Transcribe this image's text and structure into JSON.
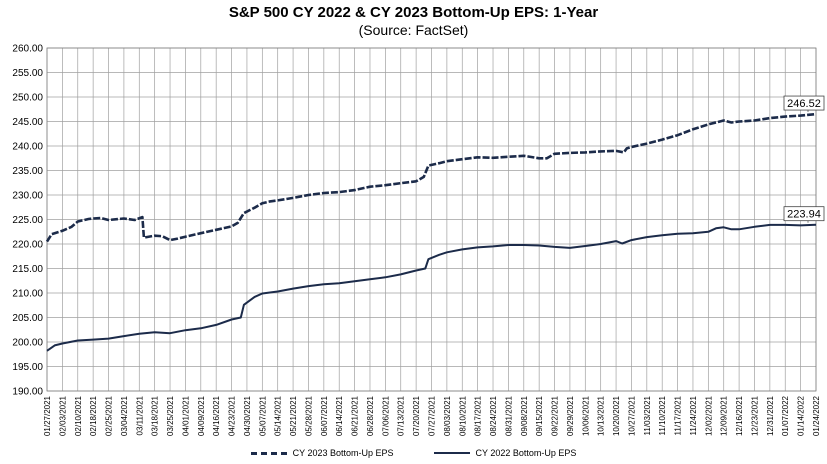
{
  "chart_data": {
    "type": "line",
    "title": "S&P 500 CY 2022 & CY 2023 Bottom-Up  EPS: 1-Year",
    "subtitle": "(Source: FactSet)",
    "ylim": [
      190,
      260
    ],
    "yticks": [
      "190.00",
      "195.00",
      "200.00",
      "205.00",
      "210.00",
      "215.00",
      "220.00",
      "225.00",
      "230.00",
      "235.00",
      "240.00",
      "245.00",
      "250.00",
      "255.00",
      "260.00"
    ],
    "xticks": [
      "01/27/2021",
      "02/03/2021",
      "02/10/2021",
      "02/18/2021",
      "02/25/2021",
      "03/04/2021",
      "03/11/2021",
      "03/18/2021",
      "03/25/2021",
      "04/01/2021",
      "04/09/2021",
      "04/16/2021",
      "04/23/2021",
      "04/30/2021",
      "05/07/2021",
      "05/14/2021",
      "05/21/2021",
      "05/28/2021",
      "06/07/2021",
      "06/14/2021",
      "06/21/2021",
      "06/28/2021",
      "07/06/2021",
      "07/13/2021",
      "07/20/2021",
      "07/27/2021",
      "08/03/2021",
      "08/10/2021",
      "08/17/2021",
      "08/24/2021",
      "08/31/2021",
      "09/08/2021",
      "09/15/2021",
      "09/22/2021",
      "09/29/2021",
      "10/06/2021",
      "10/13/2021",
      "10/20/2021",
      "10/27/2021",
      "11/03/2021",
      "11/10/2021",
      "11/17/2021",
      "11/24/2021",
      "12/02/2021",
      "12/09/2021",
      "12/16/2021",
      "12/23/2021",
      "12/31/2021",
      "01/07/2022",
      "01/14/2022",
      "01/24/2022"
    ],
    "legend_position": "bottom",
    "grid": true,
    "series": [
      {
        "name": "CY 2023 Bottom-Up EPS",
        "style": "dashed",
        "color": "#1c2b4a",
        "end_label": "246.52",
        "points": [
          [
            0,
            220.5
          ],
          [
            0.3,
            222.0
          ],
          [
            1,
            222.7
          ],
          [
            1.6,
            223.5
          ],
          [
            2,
            224.6
          ],
          [
            2.7,
            225.1
          ],
          [
            3,
            225.2
          ],
          [
            3.5,
            225.3
          ],
          [
            4,
            224.9
          ],
          [
            5,
            225.2
          ],
          [
            5.7,
            224.9
          ],
          [
            6.2,
            225.5
          ],
          [
            6.3,
            221.3
          ],
          [
            7,
            221.7
          ],
          [
            7.5,
            221.6
          ],
          [
            8,
            220.8
          ],
          [
            8.5,
            221.1
          ],
          [
            9,
            221.5
          ],
          [
            10,
            222.2
          ],
          [
            11,
            222.9
          ],
          [
            12,
            223.6
          ],
          [
            12.4,
            224.3
          ],
          [
            12.8,
            226.3
          ],
          [
            13.5,
            227.4
          ],
          [
            14,
            228.3
          ],
          [
            14.5,
            228.7
          ],
          [
            15,
            228.9
          ],
          [
            16,
            229.4
          ],
          [
            17,
            230.0
          ],
          [
            18,
            230.4
          ],
          [
            19,
            230.6
          ],
          [
            20,
            231.0
          ],
          [
            21,
            231.7
          ],
          [
            22,
            232.0
          ],
          [
            23,
            232.4
          ],
          [
            24,
            232.8
          ],
          [
            24.5,
            233.7
          ],
          [
            24.8,
            236.0
          ],
          [
            25.5,
            236.5
          ],
          [
            26,
            236.9
          ],
          [
            27,
            237.3
          ],
          [
            28,
            237.7
          ],
          [
            29,
            237.6
          ],
          [
            30,
            237.8
          ],
          [
            31,
            238.0
          ],
          [
            32,
            237.5
          ],
          [
            32.5,
            237.5
          ],
          [
            33,
            238.4
          ],
          [
            34,
            238.6
          ],
          [
            35,
            238.7
          ],
          [
            36,
            238.9
          ],
          [
            37,
            239.0
          ],
          [
            37.5,
            238.7
          ],
          [
            37.7,
            239.5
          ],
          [
            38,
            239.8
          ],
          [
            39,
            240.5
          ],
          [
            40,
            241.3
          ],
          [
            41,
            242.2
          ],
          [
            42,
            243.4
          ],
          [
            43,
            244.4
          ],
          [
            44,
            245.2
          ],
          [
            44.5,
            244.8
          ],
          [
            45,
            245.0
          ],
          [
            46,
            245.2
          ],
          [
            47,
            245.7
          ],
          [
            48,
            246.0
          ],
          [
            49,
            246.2
          ],
          [
            50,
            246.52
          ]
        ]
      },
      {
        "name": "CY 2022 Bottom-Up EPS",
        "style": "solid",
        "color": "#1c2b4a",
        "end_label": "223.94",
        "points": [
          [
            0,
            198.2
          ],
          [
            0.5,
            199.3
          ],
          [
            1,
            199.7
          ],
          [
            2,
            200.3
          ],
          [
            3,
            200.5
          ],
          [
            4,
            200.7
          ],
          [
            5,
            201.2
          ],
          [
            6,
            201.7
          ],
          [
            7,
            202.0
          ],
          [
            8,
            201.8
          ],
          [
            9,
            202.4
          ],
          [
            10,
            202.8
          ],
          [
            11,
            203.5
          ],
          [
            12,
            204.6
          ],
          [
            12.6,
            205.0
          ],
          [
            12.8,
            207.6
          ],
          [
            13.5,
            209.2
          ],
          [
            14,
            209.9
          ],
          [
            15,
            210.3
          ],
          [
            16,
            210.9
          ],
          [
            17,
            211.4
          ],
          [
            18,
            211.8
          ],
          [
            19,
            212.0
          ],
          [
            20,
            212.4
          ],
          [
            21,
            212.8
          ],
          [
            22,
            213.2
          ],
          [
            23,
            213.8
          ],
          [
            24,
            214.6
          ],
          [
            24.6,
            215.0
          ],
          [
            24.8,
            216.9
          ],
          [
            25.5,
            217.8
          ],
          [
            26,
            218.3
          ],
          [
            27,
            218.9
          ],
          [
            28,
            219.3
          ],
          [
            29,
            219.5
          ],
          [
            30,
            219.8
          ],
          [
            31,
            219.8
          ],
          [
            32,
            219.7
          ],
          [
            33,
            219.4
          ],
          [
            34,
            219.2
          ],
          [
            35,
            219.6
          ],
          [
            36,
            220.0
          ],
          [
            37,
            220.6
          ],
          [
            37.4,
            220.1
          ],
          [
            38,
            220.8
          ],
          [
            39,
            221.4
          ],
          [
            40,
            221.8
          ],
          [
            41,
            222.1
          ],
          [
            42,
            222.2
          ],
          [
            43,
            222.5
          ],
          [
            43.5,
            223.2
          ],
          [
            44,
            223.4
          ],
          [
            44.5,
            223.0
          ],
          [
            45,
            223.0
          ],
          [
            46,
            223.5
          ],
          [
            47,
            223.9
          ],
          [
            48,
            223.9
          ],
          [
            49,
            223.8
          ],
          [
            50,
            223.94
          ]
        ]
      }
    ]
  }
}
